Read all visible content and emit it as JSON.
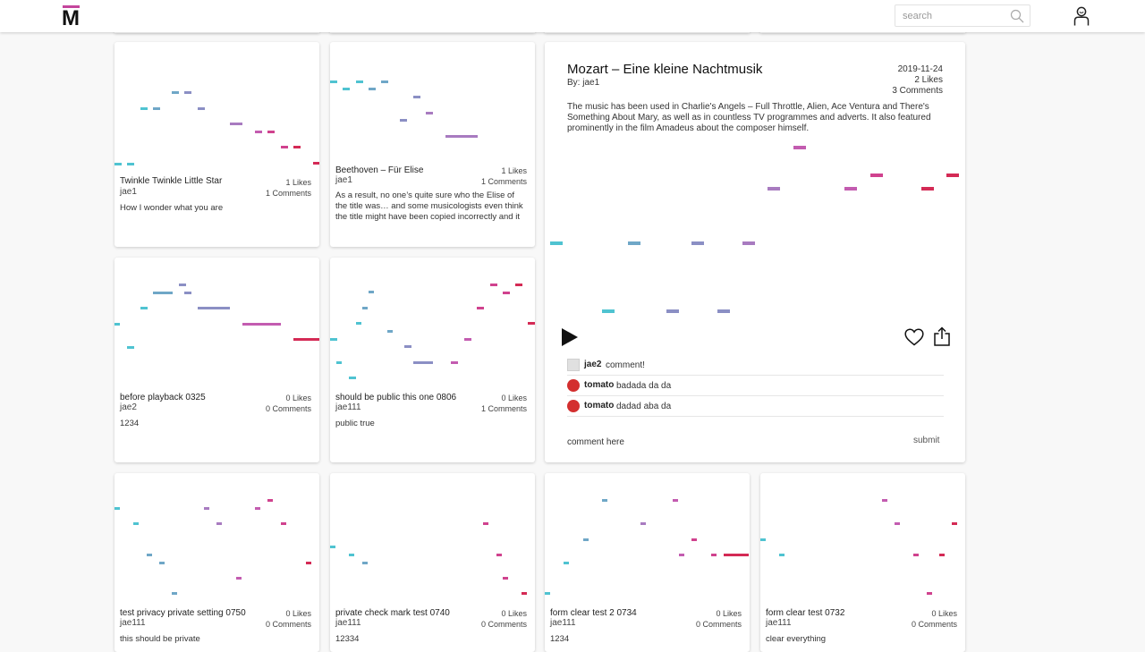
{
  "app": {
    "logo_letter": "M"
  },
  "search": {
    "placeholder": "search"
  },
  "cards": [
    {
      "title": "Twinkle Twinkle Little Star",
      "author": "jae1",
      "likes": "1 Likes",
      "comments": "1 Comments",
      "description": "How I wonder what you are"
    },
    {
      "title": "Beethoven – Für Elise",
      "author": "jae1",
      "likes": "1 Likes",
      "comments": "1 Comments",
      "description": "As a result, no one’s quite sure who the Elise of the title was… and some musicologists even think the title might have been copied incorrectly and it"
    },
    {
      "title": "before playback 0325",
      "author": "jae2",
      "likes": "0 Likes",
      "comments": "0 Comments",
      "description": "1234"
    },
    {
      "title": "should be public this one 0806",
      "author": "jae111",
      "likes": "0 Likes",
      "comments": "1 Comments",
      "description": "public true"
    },
    {
      "title": "test privacy private setting 0750",
      "author": "jae111",
      "likes": "0 Likes",
      "comments": "0 Comments",
      "description": "this should be private"
    },
    {
      "title": "private check mark test 0740",
      "author": "jae111",
      "likes": "0 Likes",
      "comments": "0 Comments",
      "description": "12334"
    },
    {
      "title": "form clear test 2 0734",
      "author": "jae111",
      "likes": "0 Likes",
      "comments": "0 Comments",
      "description": "1234"
    },
    {
      "title": "form clear test 0732",
      "author": "jae111",
      "likes": "0 Likes",
      "comments": "0 Comments",
      "description": "clear everything"
    }
  ],
  "detail": {
    "title": "Mozart – Eine kleine Nachtmusik",
    "by": "By: jae1",
    "date": "2019-11-24",
    "likes": "2 Likes",
    "comments": "3 Comments",
    "description": "The music has been used in Charlie's Angels – Full Throttle, Alien, Ace Ventura and There's Something About Mary, as well as in countless TV programmes and adverts. It also featured prominently in the film Amadeus about the composer himself.",
    "comment_list": [
      {
        "user": "jae2",
        "text": "comment!",
        "avatar": "placeholder"
      },
      {
        "user": "tomato",
        "text": "badada da da",
        "avatar": "tomato"
      },
      {
        "user": "tomato",
        "text": "dadad aba da",
        "avatar": "tomato"
      }
    ],
    "comment_placeholder": "comment here",
    "submit_label": "submit"
  },
  "colors": {
    "accent": "#c4459c",
    "note_palette": [
      "#4fc3d1",
      "#6fa7c7",
      "#8b8fc4",
      "#a87bc0",
      "#c35cb0",
      "#d0428e",
      "#d42a55"
    ]
  }
}
